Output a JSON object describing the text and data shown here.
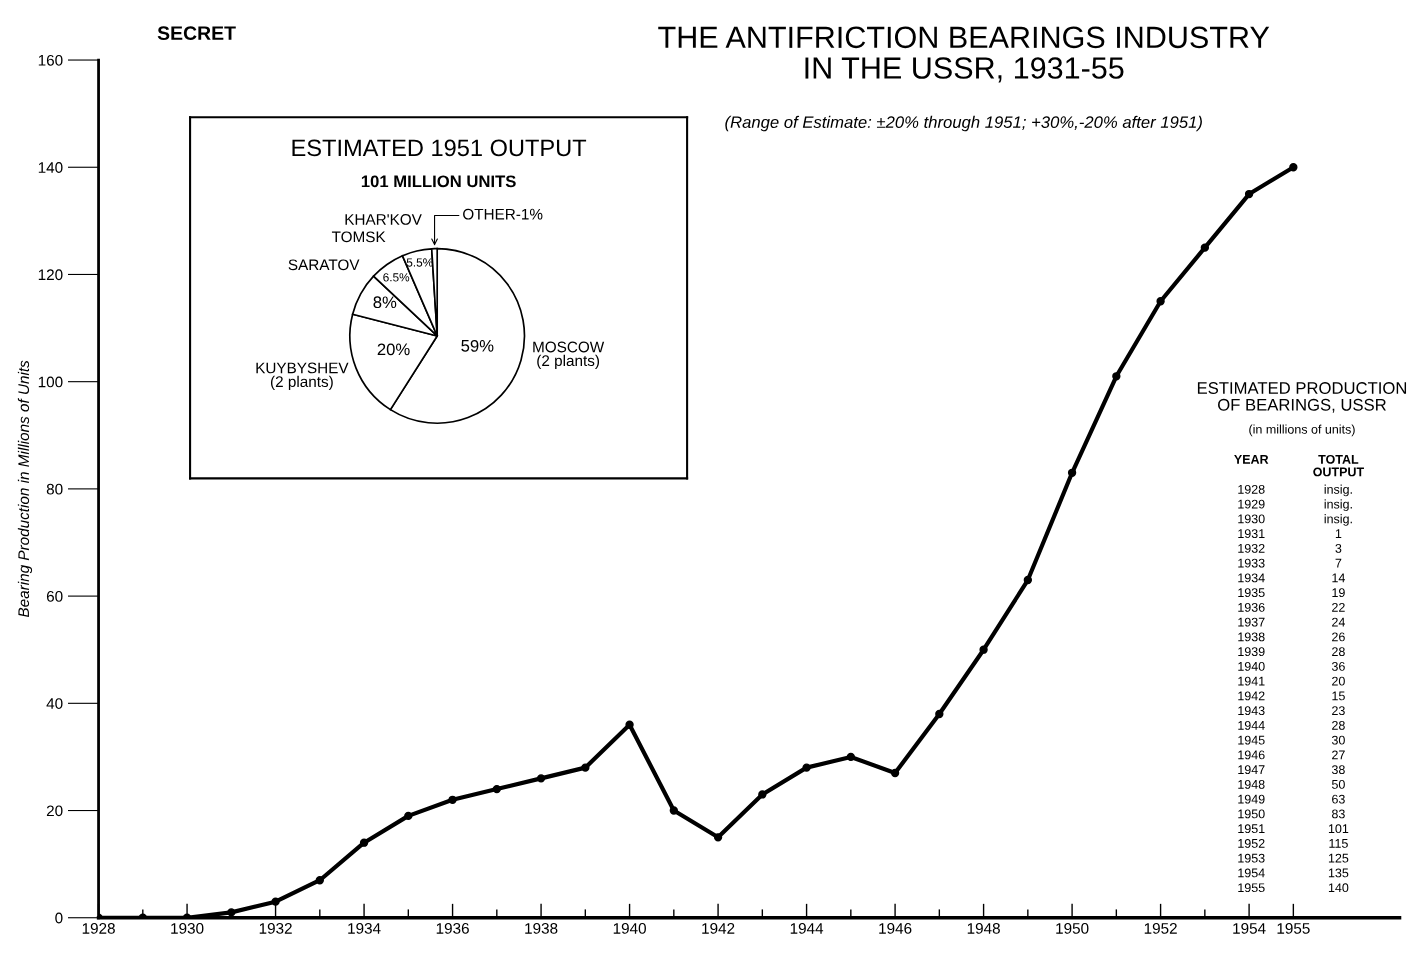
{
  "chart_data": [
    {
      "type": "line",
      "title": "THE ANTIFRICTION BEARINGS INDUSTRY\nIN THE USSR, 1931-55",
      "subtitle": "(Range of Estimate: ±20% through 1951; +30%,-20% after 1951)",
      "ylabel": "Bearing Production in Millions of Units",
      "x": [
        1928,
        1929,
        1930,
        1931,
        1932,
        1933,
        1934,
        1935,
        1936,
        1937,
        1938,
        1939,
        1940,
        1941,
        1942,
        1943,
        1944,
        1945,
        1946,
        1947,
        1948,
        1949,
        1950,
        1951,
        1952,
        1953,
        1954,
        1955
      ],
      "values": [
        0,
        0,
        0,
        1,
        3,
        7,
        14,
        19,
        22,
        24,
        26,
        28,
        36,
        20,
        15,
        23,
        28,
        30,
        27,
        38,
        50,
        63,
        83,
        101,
        115,
        125,
        135,
        140
      ],
      "color": "#000000",
      "marker": "circle",
      "line_style": "solid",
      "xlim": [
        1928,
        1957.4
      ],
      "ylim": [
        0,
        160
      ],
      "xticks": [
        1928,
        {
          "value": 1929,
          "label": null
        },
        1930,
        {
          "value": 1931,
          "label": null
        },
        1932,
        {
          "value": 1933,
          "label": null
        },
        1934,
        {
          "value": 1935,
          "label": null
        },
        1936,
        {
          "value": 1937,
          "label": null
        },
        1938,
        {
          "value": 1939,
          "label": null
        },
        1940,
        {
          "value": 1941,
          "label": null
        },
        1942,
        {
          "value": 1943,
          "label": null
        },
        1944,
        {
          "value": 1945,
          "label": null
        },
        1946,
        {
          "value": 1947,
          "label": null
        },
        1948,
        {
          "value": 1949,
          "label": null
        },
        1950,
        {
          "value": 1951,
          "label": null
        },
        1952,
        {
          "value": 1953,
          "label": null
        },
        1954,
        1955
      ],
      "yticks": [
        0,
        20,
        40,
        60,
        80,
        100,
        120,
        140,
        160
      ],
      "annotations": [
        "SECRET",
        "ESTIMATED PRODUCTION\nOF BEARINGS, USSR",
        "(in millions of units)",
        "YEAR",
        "TOTAL\nOUTPUT",
        "1928",
        "insig.",
        "1929",
        "insig.",
        "1930",
        "insig.",
        "1931",
        "1",
        "1932",
        "3",
        "1933",
        "7",
        "1934",
        "14",
        "1935",
        "19",
        "1936",
        "22",
        "1937",
        "24",
        "1938",
        "26",
        "1939",
        "28",
        "1940",
        "36",
        "1941",
        "20",
        "1942",
        "15",
        "1943",
        "23",
        "1944",
        "28",
        "1945",
        "30",
        "1946",
        "27",
        "1947",
        "38",
        "1948",
        "50",
        "1949",
        "63",
        "1950",
        "83",
        "1951",
        "101",
        "1952",
        "115",
        "1953",
        "125",
        "1954",
        "135",
        "1955",
        "140"
      ]
    },
    {
      "type": "pie",
      "title": "ESTIMATED 1951 OUTPUT",
      "subtitle": "101 MILLION UNITS",
      "categories": [
        "MOSCOW\n(2 plants)",
        "KUYBYSHEV\n(2 plants)",
        "SARATOV",
        "TOMSK",
        "KHAR'KOV",
        "OTHER-1%"
      ],
      "values": [
        59,
        20,
        8,
        6.5,
        5.5,
        1
      ],
      "value_labels": [
        "59%",
        "20%",
        "8%",
        "6.5%",
        "5.5%",
        null
      ],
      "colors": [
        "#ffffff",
        "#ffffff",
        "#ffffff",
        "#ffffff",
        "#ffffff",
        "#ffffff"
      ]
    }
  ]
}
